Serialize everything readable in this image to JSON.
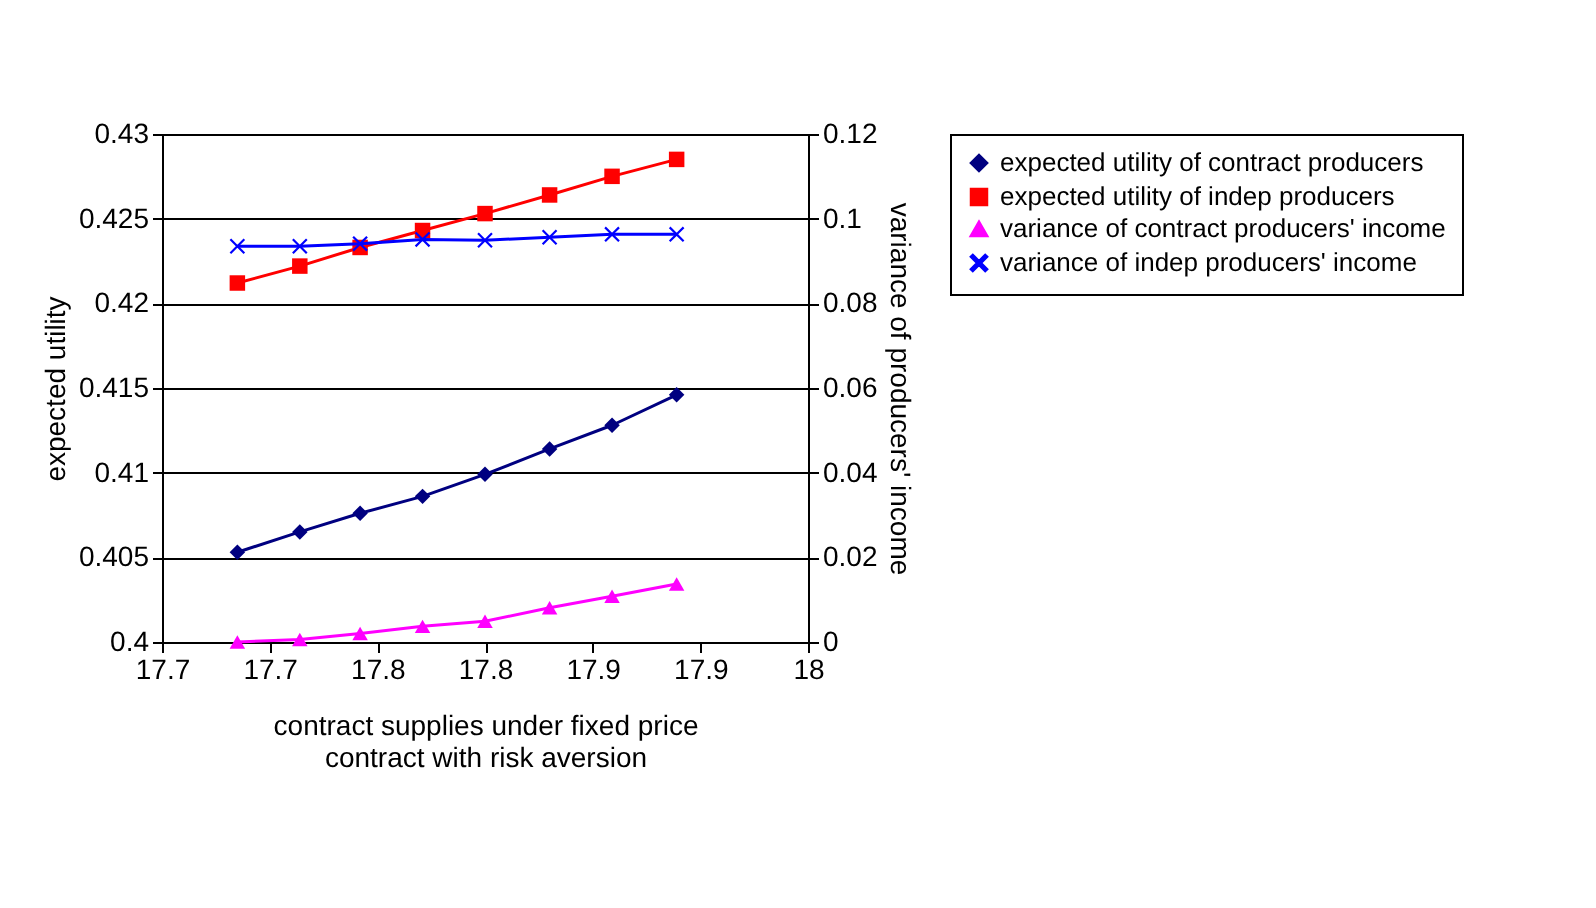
{
  "chart_data": {
    "type": "line",
    "xlabel": "contract supplies under fixed price contract with risk aversion",
    "ylabel": "expected utility",
    "y2label": "variance of producers' income",
    "x": [
      17.685,
      17.714,
      17.742,
      17.771,
      17.8,
      17.83,
      17.859,
      17.889
    ],
    "series": [
      {
        "name": "expected utility of contract producers",
        "color": "#000080",
        "marker": "diamond",
        "values": [
          0.4053,
          0.4065,
          0.4076,
          0.4086,
          0.4099,
          0.4114,
          0.4128,
          0.4146
        ]
      },
      {
        "name": "expected utility of indep producers",
        "color": "#ff0000",
        "marker": "square",
        "values": [
          0.4212,
          0.4222,
          0.4233,
          0.4243,
          0.4253,
          0.4264,
          0.4275,
          0.4285
        ]
      },
      {
        "name": "variance of contract producers' income",
        "color": "#ff00ff",
        "marker": "triangle",
        "axis": "y2",
        "values": [
          0.0,
          0.0006,
          0.002,
          0.0037,
          0.0049,
          0.0081,
          0.0108,
          0.0137
        ]
      },
      {
        "name": "variance of indep producers' income",
        "color": "#0000ff",
        "marker": "cross",
        "axis": "y2",
        "values": [
          0.0935,
          0.0935,
          0.0941,
          0.0951,
          0.0949,
          0.0956,
          0.0963,
          0.0963
        ]
      }
    ],
    "xlim": [
      17.65,
      17.95
    ],
    "xticks": [
      {
        "value": 17.65,
        "label": "17.7"
      },
      {
        "value": 17.7,
        "label": "17.7"
      },
      {
        "value": 17.75,
        "label": "17.8"
      },
      {
        "value": 17.8,
        "label": "17.8"
      },
      {
        "value": 17.85,
        "label": "17.9"
      },
      {
        "value": 17.9,
        "label": "17.9"
      },
      {
        "value": 17.95,
        "label": "18"
      }
    ],
    "ylim": [
      0.4,
      0.43
    ],
    "yticks": [
      0.4,
      0.405,
      0.41,
      0.415,
      0.42,
      0.425,
      0.43
    ],
    "y2lim": [
      0,
      0.12
    ],
    "y2ticks": [
      0,
      0.02,
      0.04,
      0.06,
      0.08,
      0.1,
      0.12
    ],
    "grid": "y",
    "legend": "right",
    "line_style": "solid"
  }
}
